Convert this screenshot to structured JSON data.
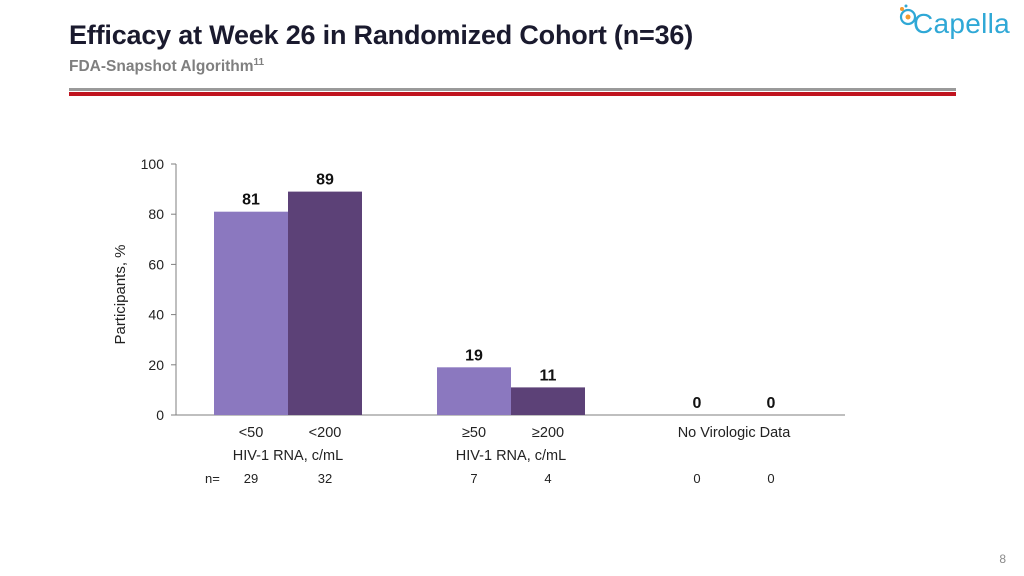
{
  "slide": {
    "title": "Efficacy at Week 26 in Randomized Cohort (n=36)",
    "subtitle": "FDA-Snapshot Algorithm",
    "subtitle_ref": "11",
    "logo_text": "Capella",
    "page_number": "8"
  },
  "colors": {
    "series_light": "#8b78bf",
    "series_dark": "#5c4177",
    "rule_gray": "#9a9a9a",
    "rule_red": "#c0141f",
    "logo_blue": "#2fa8d6",
    "logo_orange": "#f29a2e"
  },
  "chart_data": {
    "type": "bar",
    "ylabel": "Participants, %",
    "ylim": [
      0,
      100
    ],
    "yticks": [
      0,
      20,
      40,
      60,
      80,
      100
    ],
    "groups": [
      {
        "category_label": "HIV-1 RNA, c/mL",
        "bars": [
          {
            "label": "<50",
            "value": 81,
            "n": "29",
            "color": "#8b78bf"
          },
          {
            "label": "<200",
            "value": 89,
            "n": "32",
            "color": "#5c4177"
          }
        ]
      },
      {
        "category_label": "HIV-1 RNA, c/mL",
        "bars": [
          {
            "label": "≥50",
            "value": 19,
            "n": "7",
            "color": "#8b78bf"
          },
          {
            "label": "≥200",
            "value": 11,
            "n": "4",
            "color": "#5c4177"
          }
        ]
      },
      {
        "category_label": "No Virologic Data",
        "bars": [
          {
            "label": "",
            "value": 0,
            "n": "0",
            "color": "#8b78bf"
          },
          {
            "label": "",
            "value": 0,
            "n": "0",
            "color": "#5c4177"
          }
        ]
      }
    ],
    "n_prefix": "n=",
    "grid": false,
    "legend": "none"
  }
}
